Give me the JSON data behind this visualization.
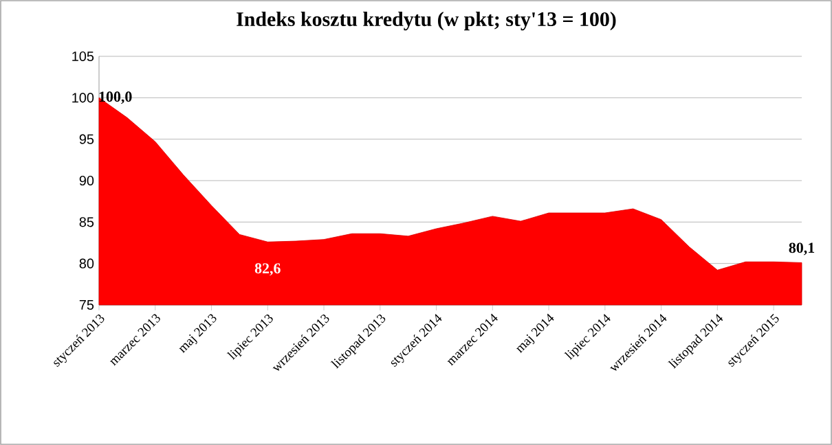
{
  "chart_data": {
    "type": "area",
    "title": "Indeks kosztu kredytu (w pkt; sty'13 = 100)",
    "categories": [
      "styczeń 2013",
      null,
      "marzec 2013",
      null,
      "maj 2013",
      null,
      "lipiec 2013",
      null,
      "wrzesień 2013",
      null,
      "listopad 2013",
      null,
      "styczeń 2014",
      null,
      "marzec 2014",
      null,
      "maj 2014",
      null,
      "lipiec 2014",
      null,
      "wrzesień 2014",
      null,
      "listopad 2014",
      null,
      "styczeń 2015",
      null
    ],
    "values": [
      100.0,
      97.6,
      94.7,
      90.7,
      87.0,
      83.5,
      82.6,
      82.7,
      82.9,
      83.6,
      83.6,
      83.3,
      84.2,
      84.9,
      85.7,
      85.1,
      86.1,
      86.1,
      86.1,
      86.6,
      85.3,
      82.0,
      79.2,
      80.2,
      80.2,
      80.1
    ],
    "value_labels": [
      "100,0",
      null,
      null,
      null,
      null,
      null,
      "82,6",
      null,
      null,
      null,
      null,
      null,
      null,
      null,
      null,
      null,
      null,
      null,
      null,
      null,
      null,
      null,
      null,
      null,
      null,
      "80,1"
    ],
    "color": "#ff0000",
    "ylim": [
      75,
      105
    ],
    "yticks": [
      75,
      80,
      85,
      90,
      95,
      100,
      105
    ],
    "grid": "y"
  }
}
